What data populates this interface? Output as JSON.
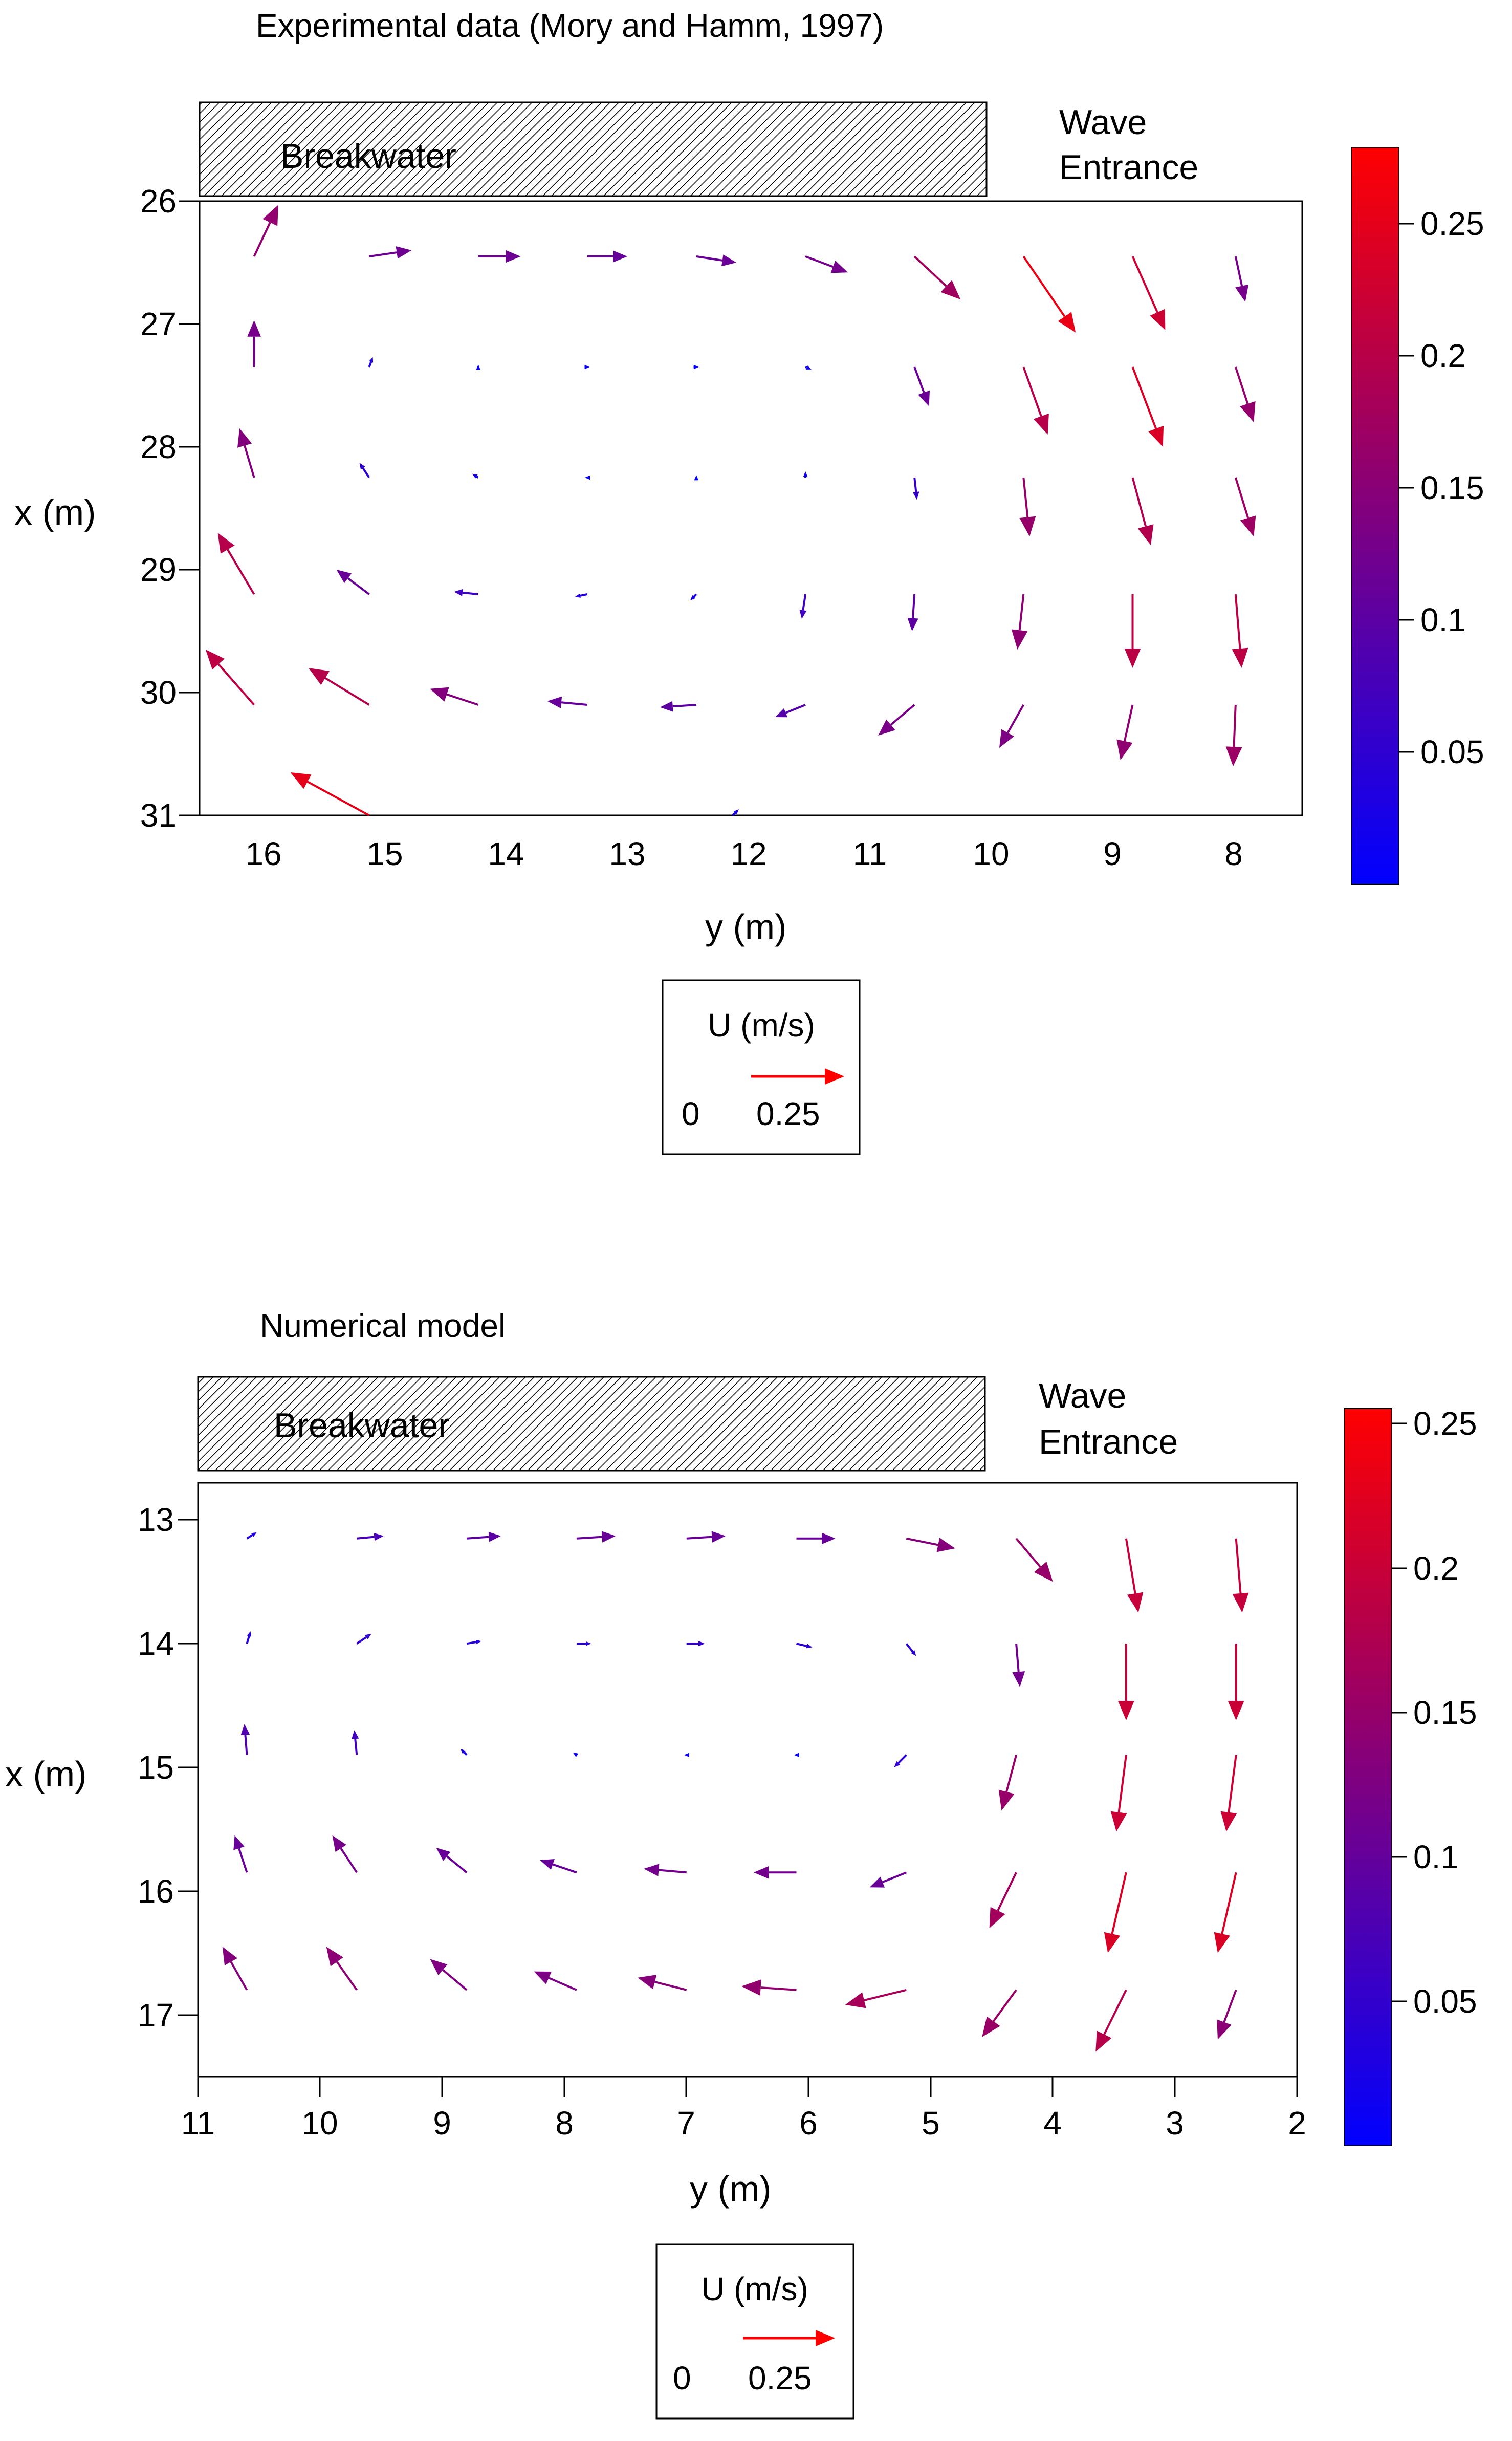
{
  "chart_data": [
    {
      "type": "quiver",
      "title": "Experimental data (Mory and Hamm, 1997)",
      "xlabel": "y (m)",
      "ylabel": "x (m)",
      "x_range": [
        16.6,
        7.5
      ],
      "y_range": [
        26,
        31
      ],
      "x_ticks": [
        16,
        15,
        14,
        13,
        12,
        11,
        10,
        9,
        8
      ],
      "y_ticks": [
        26,
        27,
        28,
        29,
        30,
        31
      ],
      "annotations": {
        "breakwater": "Breakwater",
        "wave_line1": "Wave",
        "wave_line2": "Entrance"
      },
      "colorbar": {
        "min": 0,
        "max": 0.27,
        "ticks": [
          "0.05",
          "0.1",
          "0.15",
          "0.2",
          "0.25"
        ],
        "tick_values": [
          0.05,
          0.1,
          0.15,
          0.2,
          0.25
        ],
        "colors": [
          "#0000ff",
          "#ff0000"
        ]
      },
      "legend": {
        "title": "U (m/s)",
        "zero_label": "0",
        "ref_label": "0.25",
        "ref_value": 0.25
      },
      "ref_length": 0.76,
      "vectors": [
        {
          "y": 16.15,
          "x": 26.45,
          "dy": -0.2,
          "dx": -0.42
        },
        {
          "y": 15.2,
          "x": 26.45,
          "dy": -0.35,
          "dx": -0.05
        },
        {
          "y": 14.3,
          "x": 26.45,
          "dy": -0.35,
          "dx": 0
        },
        {
          "y": 13.4,
          "x": 26.45,
          "dy": -0.33,
          "dx": 0
        },
        {
          "y": 12.5,
          "x": 26.45,
          "dy": -0.33,
          "dx": 0.05
        },
        {
          "y": 11.6,
          "x": 26.45,
          "dy": -0.35,
          "dx": 0.13
        },
        {
          "y": 10.7,
          "x": 26.45,
          "dy": -0.38,
          "dx": 0.35
        },
        {
          "y": 9.8,
          "x": 26.45,
          "dy": -0.43,
          "dx": 0.62
        },
        {
          "y": 8.9,
          "x": 26.45,
          "dy": -0.27,
          "dx": 0.6
        },
        {
          "y": 8.05,
          "x": 26.45,
          "dy": -0.08,
          "dx": 0.37
        },
        {
          "y": 16.15,
          "x": 27.35,
          "dy": 0,
          "dx": -0.38
        },
        {
          "y": 15.2,
          "x": 27.35,
          "dy": -0.03,
          "dx": -0.08
        },
        {
          "y": 14.3,
          "x": 27.35,
          "dy": 0,
          "dx": -0.02
        },
        {
          "y": 13.4,
          "x": 27.35,
          "dy": -0.02,
          "dx": 0
        },
        {
          "y": 12.5,
          "x": 27.35,
          "dy": -0.02,
          "dx": 0
        },
        {
          "y": 11.6,
          "x": 27.35,
          "dy": -0.05,
          "dx": 0.02
        },
        {
          "y": 10.7,
          "x": 27.35,
          "dy": -0.12,
          "dx": 0.32
        },
        {
          "y": 9.8,
          "x": 27.35,
          "dy": -0.2,
          "dx": 0.55
        },
        {
          "y": 8.9,
          "x": 27.35,
          "dy": -0.25,
          "dx": 0.65
        },
        {
          "y": 8.05,
          "x": 27.35,
          "dy": -0.15,
          "dx": 0.45
        },
        {
          "y": 16.15,
          "x": 28.25,
          "dy": 0.12,
          "dx": -0.4
        },
        {
          "y": 15.2,
          "x": 28.25,
          "dy": 0.08,
          "dx": -0.12
        },
        {
          "y": 14.3,
          "x": 28.25,
          "dy": 0.05,
          "dx": -0.03
        },
        {
          "y": 13.4,
          "x": 28.25,
          "dy": 0.02,
          "dx": 0
        },
        {
          "y": 12.5,
          "x": 28.25,
          "dy": 0,
          "dx": -0.02
        },
        {
          "y": 11.6,
          "x": 28.25,
          "dy": 0,
          "dx": -0.05
        },
        {
          "y": 10.7,
          "x": 28.25,
          "dy": -0.02,
          "dx": 0.18
        },
        {
          "y": 9.8,
          "x": 28.25,
          "dy": -0.05,
          "dx": 0.48
        },
        {
          "y": 8.9,
          "x": 28.25,
          "dy": -0.15,
          "dx": 0.55
        },
        {
          "y": 8.05,
          "x": 28.25,
          "dy": -0.15,
          "dx": 0.48
        },
        {
          "y": 16.15,
          "x": 29.2,
          "dy": 0.3,
          "dx": -0.5
        },
        {
          "y": 15.2,
          "x": 29.2,
          "dy": 0.27,
          "dx": -0.2
        },
        {
          "y": 14.3,
          "x": 29.2,
          "dy": 0.2,
          "dx": -0.02
        },
        {
          "y": 13.4,
          "x": 29.2,
          "dy": 0.1,
          "dx": 0.02
        },
        {
          "y": 12.5,
          "x": 29.2,
          "dy": 0.05,
          "dx": 0.05
        },
        {
          "y": 11.6,
          "x": 29.2,
          "dy": 0.03,
          "dx": 0.2
        },
        {
          "y": 10.7,
          "x": 29.2,
          "dy": 0.02,
          "dx": 0.3
        },
        {
          "y": 9.8,
          "x": 29.2,
          "dy": 0.05,
          "dx": 0.45
        },
        {
          "y": 8.9,
          "x": 29.2,
          "dy": 0,
          "dx": 0.6
        },
        {
          "y": 8.05,
          "x": 29.2,
          "dy": -0.05,
          "dx": 0.6
        },
        {
          "y": 16.15,
          "x": 30.1,
          "dy": 0.4,
          "dx": -0.45
        },
        {
          "y": 15.2,
          "x": 30.1,
          "dy": 0.5,
          "dx": -0.3
        },
        {
          "y": 14.3,
          "x": 30.1,
          "dy": 0.4,
          "dx": -0.13
        },
        {
          "y": 13.4,
          "x": 30.1,
          "dy": 0.33,
          "dx": -0.03
        },
        {
          "y": 12.5,
          "x": 30.1,
          "dy": 0.3,
          "dx": 0.02
        },
        {
          "y": 11.6,
          "x": 30.1,
          "dy": 0.25,
          "dx": 0.1
        },
        {
          "y": 10.7,
          "x": 30.1,
          "dy": 0.3,
          "dx": 0.25
        },
        {
          "y": 9.8,
          "x": 30.1,
          "dy": 0.2,
          "dx": 0.35
        },
        {
          "y": 8.9,
          "x": 30.1,
          "dy": 0.1,
          "dx": 0.45
        },
        {
          "y": 8.05,
          "x": 30.1,
          "dy": 0.02,
          "dx": 0.5
        },
        {
          "y": 15.2,
          "x": 31.0,
          "dy": 0.65,
          "dx": -0.35
        },
        {
          "y": 12.2,
          "x": 31.0,
          "dy": -0.05,
          "dx": -0.05
        }
      ]
    },
    {
      "type": "quiver",
      "title": "Numerical model",
      "xlabel": "y (m)",
      "ylabel": "x (m)",
      "x_range": [
        11,
        2
      ],
      "y_range": [
        12.7,
        17.5
      ],
      "x_ticks": [
        11,
        10,
        9,
        8,
        7,
        6,
        5,
        4,
        3,
        2
      ],
      "y_ticks": [
        13,
        14,
        15,
        16,
        17
      ],
      "annotations": {
        "breakwater": "Breakwater",
        "wave_line1": "Wave",
        "wave_line2": "Entrance"
      },
      "colorbar": {
        "min": 0,
        "max": 0.255,
        "ticks": [
          "0.05",
          "0.1",
          "0.15",
          "0.2",
          "0.25"
        ],
        "tick_values": [
          0.05,
          0.1,
          0.15,
          0.2,
          0.25
        ],
        "colors": [
          "#0000ff",
          "#ff0000"
        ]
      },
      "legend": {
        "title": "U (m/s)",
        "zero_label": "0",
        "ref_label": "0.25",
        "ref_value": 0.25
      },
      "ref_length": 0.77,
      "vectors": [
        {
          "y": 10.6,
          "x": 13.15,
          "dy": -0.08,
          "dx": -0.05
        },
        {
          "y": 9.7,
          "x": 13.15,
          "dy": -0.22,
          "dx": -0.02
        },
        {
          "y": 8.8,
          "x": 13.15,
          "dy": -0.28,
          "dx": -0.02
        },
        {
          "y": 7.9,
          "x": 13.15,
          "dy": -0.32,
          "dx": -0.02
        },
        {
          "y": 7.0,
          "x": 13.15,
          "dy": -0.32,
          "dx": -0.02
        },
        {
          "y": 6.1,
          "x": 13.15,
          "dy": -0.32,
          "dx": 0
        },
        {
          "y": 5.2,
          "x": 13.15,
          "dy": -0.4,
          "dx": 0.08
        },
        {
          "y": 4.3,
          "x": 13.15,
          "dy": -0.3,
          "dx": 0.35
        },
        {
          "y": 3.4,
          "x": 13.15,
          "dy": -0.1,
          "dx": 0.6
        },
        {
          "y": 2.5,
          "x": 13.15,
          "dy": -0.05,
          "dx": 0.6
        },
        {
          "y": 10.6,
          "x": 14.0,
          "dy": -0.03,
          "dx": -0.1
        },
        {
          "y": 9.7,
          "x": 14.0,
          "dy": -0.12,
          "dx": -0.08
        },
        {
          "y": 8.8,
          "x": 14.0,
          "dy": -0.12,
          "dx": -0.02
        },
        {
          "y": 7.9,
          "x": 14.0,
          "dy": -0.12,
          "dx": 0
        },
        {
          "y": 7.0,
          "x": 14.0,
          "dy": -0.15,
          "dx": 0
        },
        {
          "y": 6.1,
          "x": 14.0,
          "dy": -0.13,
          "dx": 0.03
        },
        {
          "y": 5.2,
          "x": 14.0,
          "dy": -0.08,
          "dx": 0.1
        },
        {
          "y": 4.3,
          "x": 14.0,
          "dy": -0.03,
          "dx": 0.35
        },
        {
          "y": 3.4,
          "x": 14.0,
          "dy": 0,
          "dx": 0.62
        },
        {
          "y": 2.5,
          "x": 14.0,
          "dy": 0,
          "dx": 0.62
        },
        {
          "y": 10.6,
          "x": 14.9,
          "dy": 0.02,
          "dx": -0.25
        },
        {
          "y": 9.7,
          "x": 14.9,
          "dy": 0.02,
          "dx": -0.2
        },
        {
          "y": 8.8,
          "x": 14.9,
          "dy": 0.05,
          "dx": -0.05
        },
        {
          "y": 7.9,
          "x": 14.9,
          "dy": 0.03,
          "dx": -0.02
        },
        {
          "y": 7.0,
          "x": 14.9,
          "dy": 0.02,
          "dx": 0
        },
        {
          "y": 6.1,
          "x": 14.9,
          "dy": 0.02,
          "dx": 0
        },
        {
          "y": 5.2,
          "x": 14.9,
          "dy": 0.1,
          "dx": 0.1
        },
        {
          "y": 4.3,
          "x": 14.9,
          "dy": 0.12,
          "dx": 0.45
        },
        {
          "y": 3.4,
          "x": 14.9,
          "dy": 0.08,
          "dx": 0.62
        },
        {
          "y": 2.5,
          "x": 14.9,
          "dy": 0.08,
          "dx": 0.62
        },
        {
          "y": 10.6,
          "x": 15.85,
          "dy": 0.1,
          "dx": -0.3
        },
        {
          "y": 9.7,
          "x": 15.85,
          "dy": 0.2,
          "dx": -0.3
        },
        {
          "y": 8.8,
          "x": 15.85,
          "dy": 0.25,
          "dx": -0.2
        },
        {
          "y": 7.9,
          "x": 15.85,
          "dy": 0.3,
          "dx": -0.1
        },
        {
          "y": 7.0,
          "x": 15.85,
          "dy": 0.35,
          "dx": -0.03
        },
        {
          "y": 6.1,
          "x": 15.85,
          "dy": 0.35,
          "dx": 0
        },
        {
          "y": 5.2,
          "x": 15.85,
          "dy": 0.3,
          "dx": 0.12
        },
        {
          "y": 4.3,
          "x": 15.85,
          "dy": 0.22,
          "dx": 0.45
        },
        {
          "y": 3.4,
          "x": 15.85,
          "dy": 0.15,
          "dx": 0.65
        },
        {
          "y": 2.5,
          "x": 15.85,
          "dy": 0.15,
          "dx": 0.65
        },
        {
          "y": 10.6,
          "x": 16.8,
          "dy": 0.2,
          "dx": -0.35
        },
        {
          "y": 9.7,
          "x": 16.8,
          "dy": 0.25,
          "dx": -0.35
        },
        {
          "y": 8.8,
          "x": 16.8,
          "dy": 0.3,
          "dx": -0.25
        },
        {
          "y": 7.9,
          "x": 16.8,
          "dy": 0.35,
          "dx": -0.15
        },
        {
          "y": 7.0,
          "x": 16.8,
          "dy": 0.4,
          "dx": -0.1
        },
        {
          "y": 6.1,
          "x": 16.8,
          "dy": 0.45,
          "dx": -0.03
        },
        {
          "y": 5.2,
          "x": 16.8,
          "dy": 0.5,
          "dx": 0.12
        },
        {
          "y": 4.3,
          "x": 16.8,
          "dy": 0.28,
          "dx": 0.38
        },
        {
          "y": 3.4,
          "x": 16.8,
          "dy": 0.25,
          "dx": 0.5
        },
        {
          "y": 2.5,
          "x": 16.8,
          "dy": 0.15,
          "dx": 0.4
        }
      ]
    }
  ]
}
